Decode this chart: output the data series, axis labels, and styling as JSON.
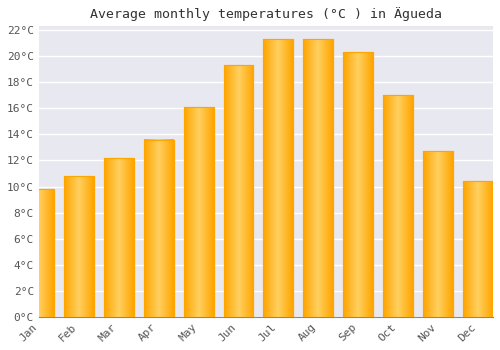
{
  "title": "Average monthly temperatures (°C ) in Ägueda",
  "months": [
    "Jan",
    "Feb",
    "Mar",
    "Apr",
    "May",
    "Jun",
    "Jul",
    "Aug",
    "Sep",
    "Oct",
    "Nov",
    "Dec"
  ],
  "temperatures": [
    9.8,
    10.8,
    12.2,
    13.6,
    16.1,
    19.3,
    21.3,
    21.3,
    20.3,
    17.0,
    12.7,
    10.4
  ],
  "bar_color_center": "#FFD060",
  "bar_color_edge": "#FFA500",
  "background_color": "#FFFFFF",
  "plot_bg_color": "#E8E8F0",
  "ytick_step": 2,
  "ymin": 0,
  "ymax": 22,
  "grid_color": "#FFFFFF",
  "title_fontsize": 9.5,
  "tick_fontsize": 8,
  "font_family": "monospace"
}
